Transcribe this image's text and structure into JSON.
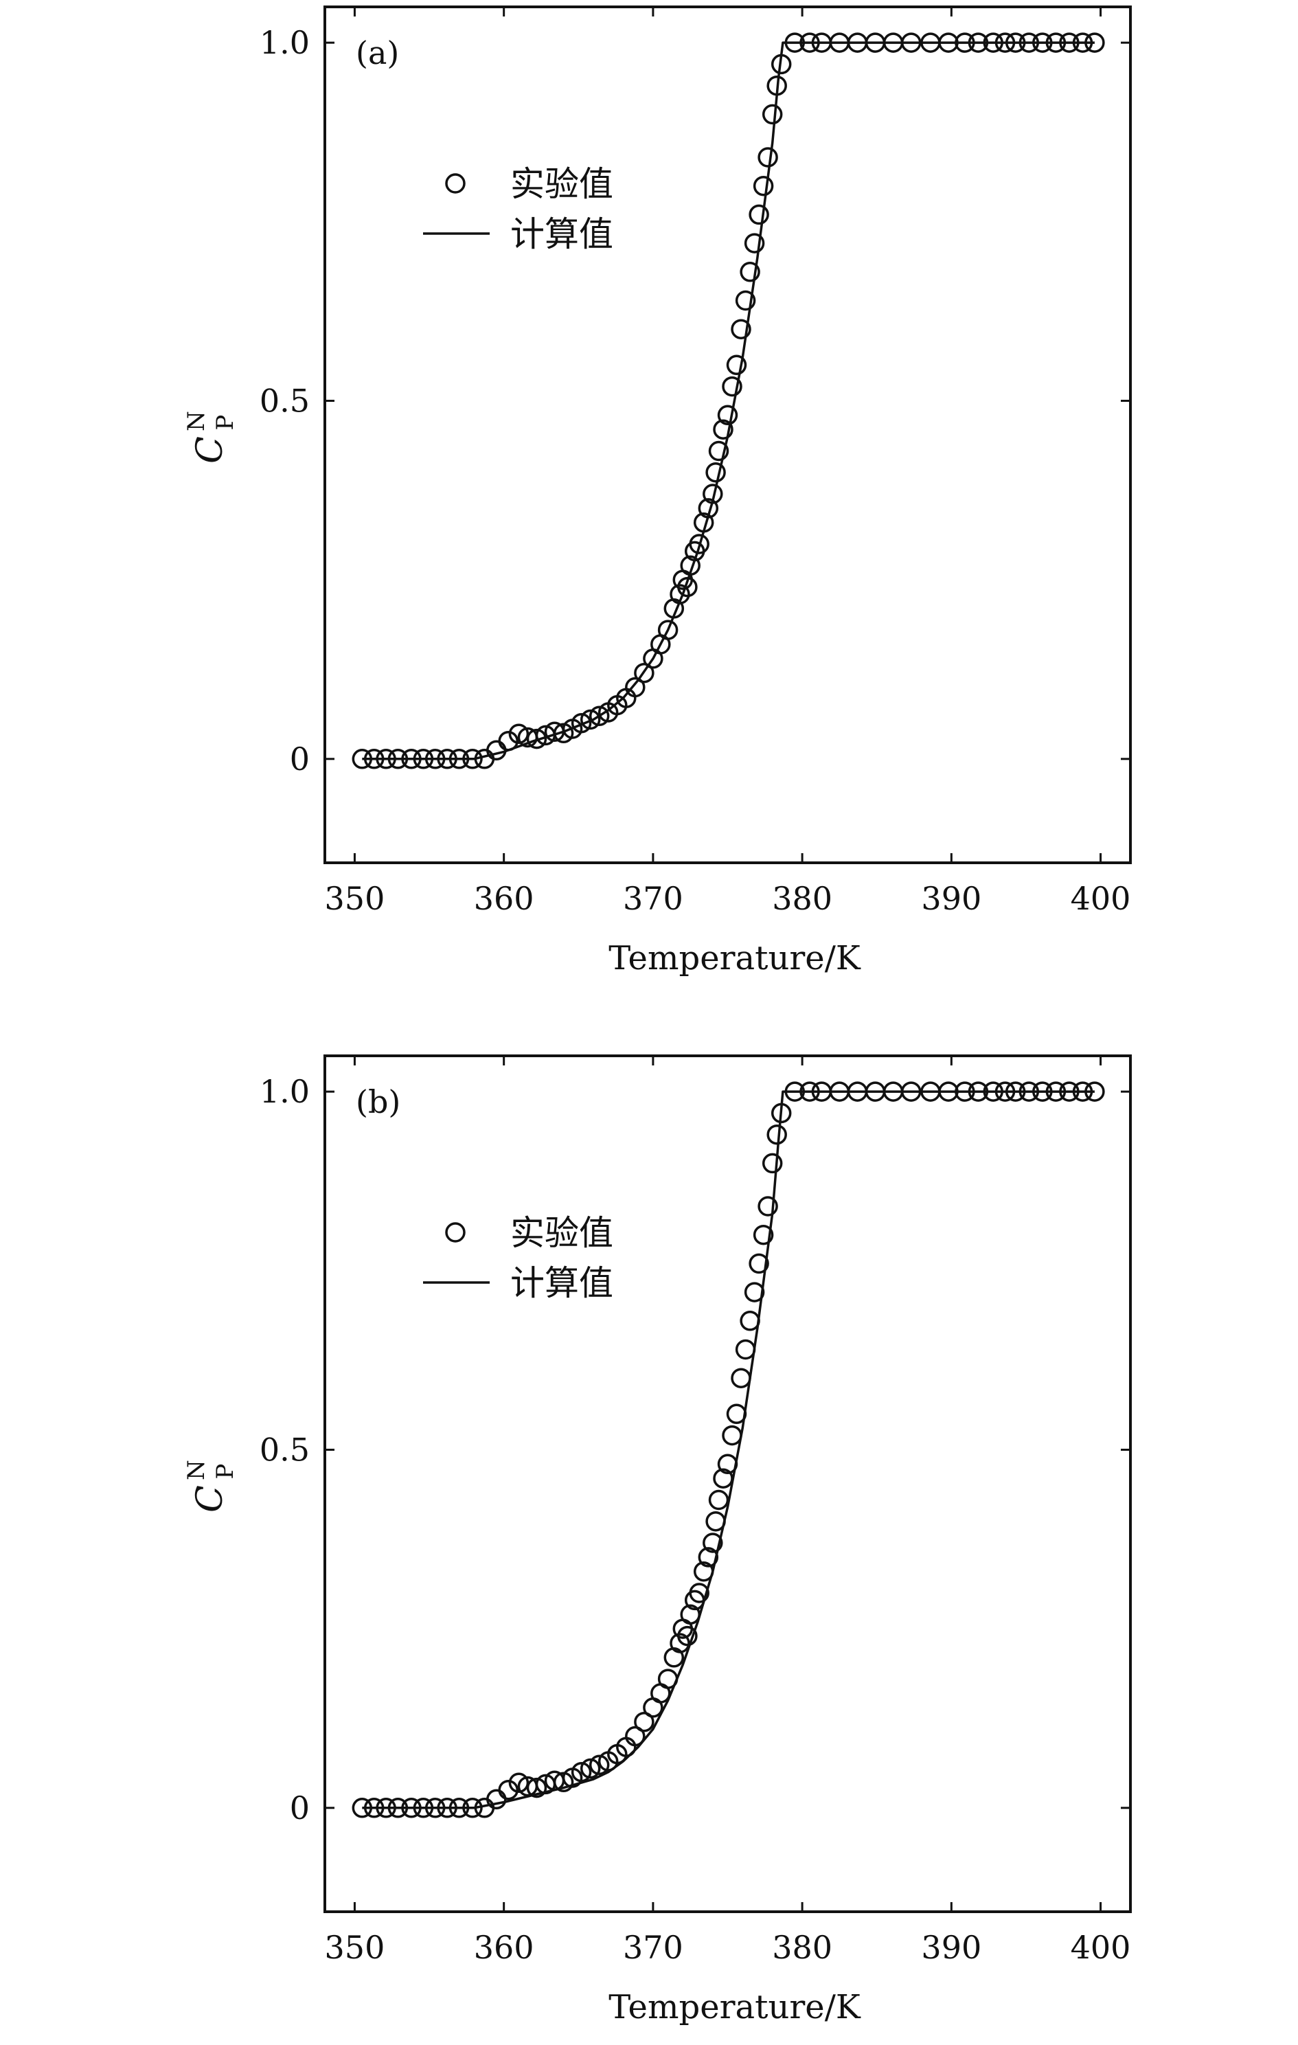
{
  "chart_data": [
    {
      "type": "scatter",
      "panel_label": "(a)",
      "xlabel": "Temperature/K",
      "ylabel": {
        "main": "C",
        "sup": "N",
        "sub": "P"
      },
      "xlim": [
        348,
        402
      ],
      "ylim": [
        -0.145,
        1.05
      ],
      "xticks": [
        350,
        360,
        370,
        380,
        390,
        400
      ],
      "yticks": [
        0,
        0.5,
        1.0
      ],
      "ytick_labels": [
        "0",
        "0.5",
        "1.0"
      ],
      "grid": false,
      "legend": {
        "position": "upper-left",
        "entries": [
          "实验值",
          "计算值"
        ]
      },
      "series": [
        {
          "name": "实验值",
          "kind": "markers",
          "marker": "open-circle",
          "x": [
            350.5,
            351.3,
            352.1,
            352.9,
            353.8,
            354.6,
            355.4,
            356.2,
            357.0,
            357.9,
            358.7,
            359.5,
            360.3,
            361.0,
            361.6,
            362.2,
            362.8,
            363.4,
            364.0,
            364.6,
            365.2,
            365.8,
            366.4,
            367.0,
            367.6,
            368.2,
            368.8,
            369.4,
            370.0,
            370.5,
            371.0,
            371.4,
            371.8,
            372.0,
            372.3,
            372.5,
            372.8,
            373.1,
            373.4,
            373.7,
            374.0,
            374.2,
            374.4,
            374.7,
            375.0,
            375.3,
            375.6,
            375.9,
            376.2,
            376.5,
            376.8,
            377.1,
            377.4,
            377.7,
            378.0,
            378.3,
            378.6,
            379.5,
            380.5,
            381.3,
            382.5,
            383.7,
            384.9,
            386.1,
            387.3,
            388.6,
            389.8,
            390.9,
            391.8,
            392.8,
            393.6,
            394.3,
            395.2,
            396.1,
            397.0,
            397.9,
            398.8,
            399.6
          ],
          "y": [
            0,
            0,
            0,
            0,
            0,
            0,
            0,
            0,
            0,
            0,
            0,
            0.012,
            0.025,
            0.035,
            0.03,
            0.028,
            0.033,
            0.038,
            0.036,
            0.042,
            0.05,
            0.055,
            0.06,
            0.065,
            0.075,
            0.085,
            0.1,
            0.12,
            0.14,
            0.16,
            0.18,
            0.21,
            0.23,
            0.25,
            0.24,
            0.27,
            0.29,
            0.3,
            0.33,
            0.35,
            0.37,
            0.4,
            0.43,
            0.46,
            0.48,
            0.52,
            0.55,
            0.6,
            0.64,
            0.68,
            0.72,
            0.76,
            0.8,
            0.84,
            0.9,
            0.94,
            0.97,
            1.0,
            1.0,
            1.0,
            1.0,
            1.0,
            1.0,
            1.0,
            1.0,
            1.0,
            1.0,
            1.0,
            1.0,
            1.0,
            1.0,
            1.0,
            1.0,
            1.0,
            1.0,
            1.0,
            1.0,
            1.0
          ]
        },
        {
          "name": "计算值",
          "kind": "line",
          "x": [
            350.5,
            356,
            358,
            360,
            362,
            364,
            366,
            367,
            368,
            369,
            370,
            371,
            372,
            373,
            374,
            375,
            376,
            377,
            378,
            378.4,
            378.7,
            390,
            399.6
          ],
          "y": [
            0,
            0,
            0,
            0.01,
            0.025,
            0.038,
            0.055,
            0.068,
            0.085,
            0.11,
            0.14,
            0.18,
            0.23,
            0.29,
            0.36,
            0.45,
            0.56,
            0.7,
            0.86,
            0.95,
            1.0,
            1.0,
            1.0
          ]
        }
      ]
    },
    {
      "type": "scatter",
      "panel_label": "(b)",
      "xlabel": "Temperature/K",
      "ylabel": {
        "main": "C",
        "sup": "N",
        "sub": "P"
      },
      "xlim": [
        348,
        402
      ],
      "ylim": [
        -0.145,
        1.05
      ],
      "xticks": [
        350,
        360,
        370,
        380,
        390,
        400
      ],
      "yticks": [
        0,
        0.5,
        1.0
      ],
      "ytick_labels": [
        "0",
        "0.5",
        "1.0"
      ],
      "grid": false,
      "legend": {
        "position": "upper-left",
        "entries": [
          "实验值",
          "计算值"
        ]
      },
      "series": [
        {
          "name": "实验值",
          "kind": "markers",
          "marker": "open-circle",
          "x": [
            350.5,
            351.3,
            352.1,
            352.9,
            353.8,
            354.6,
            355.4,
            356.2,
            357.0,
            357.9,
            358.7,
            359.5,
            360.3,
            361.0,
            361.6,
            362.2,
            362.8,
            363.4,
            364.0,
            364.6,
            365.2,
            365.8,
            366.4,
            367.0,
            367.6,
            368.2,
            368.8,
            369.4,
            370.0,
            370.5,
            371.0,
            371.4,
            371.8,
            372.0,
            372.3,
            372.5,
            372.8,
            373.1,
            373.4,
            373.7,
            374.0,
            374.2,
            374.4,
            374.7,
            375.0,
            375.3,
            375.6,
            375.9,
            376.2,
            376.5,
            376.8,
            377.1,
            377.4,
            377.7,
            378.0,
            378.3,
            378.6,
            379.5,
            380.5,
            381.3,
            382.5,
            383.7,
            384.9,
            386.1,
            387.3,
            388.6,
            389.8,
            390.9,
            391.8,
            392.8,
            393.6,
            394.3,
            395.2,
            396.1,
            397.0,
            397.9,
            398.8,
            399.6
          ],
          "y": [
            0,
            0,
            0,
            0,
            0,
            0,
            0,
            0,
            0,
            0,
            0,
            0.012,
            0.025,
            0.035,
            0.03,
            0.028,
            0.033,
            0.038,
            0.036,
            0.042,
            0.05,
            0.055,
            0.06,
            0.065,
            0.075,
            0.085,
            0.1,
            0.12,
            0.14,
            0.16,
            0.18,
            0.21,
            0.23,
            0.25,
            0.24,
            0.27,
            0.29,
            0.3,
            0.33,
            0.35,
            0.37,
            0.4,
            0.43,
            0.46,
            0.48,
            0.52,
            0.55,
            0.6,
            0.64,
            0.68,
            0.72,
            0.76,
            0.8,
            0.84,
            0.9,
            0.94,
            0.97,
            1.0,
            1.0,
            1.0,
            1.0,
            1.0,
            1.0,
            1.0,
            1.0,
            1.0,
            1.0,
            1.0,
            1.0,
            1.0,
            1.0,
            1.0,
            1.0,
            1.0,
            1.0,
            1.0,
            1.0,
            1.0
          ]
        },
        {
          "name": "计算值",
          "kind": "line",
          "x": [
            350.5,
            356,
            358,
            360,
            362,
            364,
            366,
            367,
            368,
            369,
            370,
            371,
            372,
            373,
            374,
            375,
            376,
            377,
            378,
            378.4,
            378.7,
            390,
            399.6
          ],
          "y": [
            0,
            0,
            0,
            0.008,
            0.018,
            0.028,
            0.04,
            0.05,
            0.065,
            0.085,
            0.11,
            0.15,
            0.2,
            0.26,
            0.33,
            0.42,
            0.53,
            0.67,
            0.83,
            0.93,
            1.0,
            1.0,
            1.0
          ]
        }
      ]
    }
  ]
}
